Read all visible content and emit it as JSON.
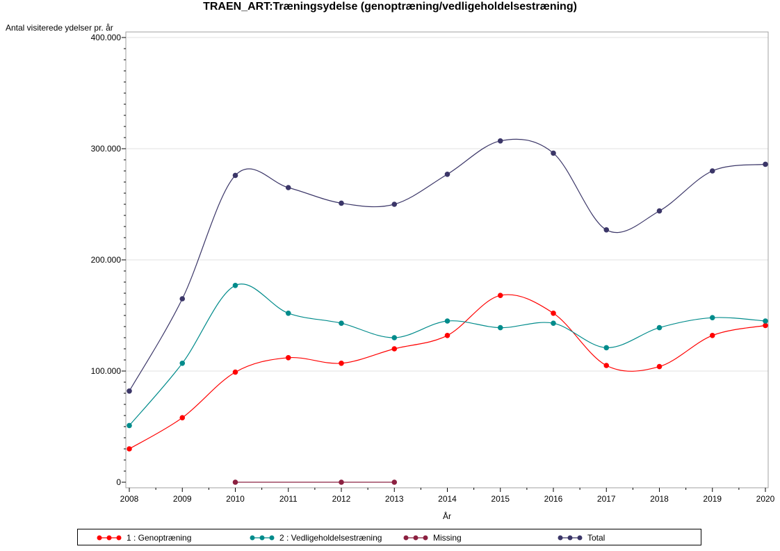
{
  "chart_data": {
    "type": "line",
    "title": "TRAEN_ART:Træningsydelse (genoptræning/vedligeholdelsestræning)",
    "ylabel": "Antal visiterede ydelser pr. år",
    "xlabel": "År",
    "x": [
      2008,
      2009,
      2010,
      2011,
      2012,
      2013,
      2014,
      2015,
      2016,
      2017,
      2018,
      2019,
      2020
    ],
    "ylim": [
      -5000,
      400000
    ],
    "xlim": [
      2008,
      2020
    ],
    "yticks": [
      0,
      100000,
      200000,
      300000,
      400000
    ],
    "ytick_labels": [
      "0",
      "100.000",
      "200.000",
      "300.000",
      "400.000"
    ],
    "xtick_labels": [
      "2008",
      "2009",
      "2010",
      "2011",
      "2012",
      "2013",
      "2014",
      "2015",
      "2016",
      "2017",
      "2018",
      "2019",
      "2020"
    ],
    "grid": true,
    "legend_position": "bottom",
    "series": [
      {
        "name": "1 : Genoptræning",
        "color": "#ff0000",
        "x": [
          2008,
          2009,
          2010,
          2011,
          2012,
          2013,
          2014,
          2015,
          2016,
          2017,
          2018,
          2019,
          2020
        ],
        "values": [
          30000,
          58000,
          99000,
          112000,
          107000,
          120000,
          132000,
          168000,
          152000,
          105000,
          104000,
          132000,
          141000
        ]
      },
      {
        "name": "2 : Vedligeholdelsestræning",
        "color": "#008b8b",
        "x": [
          2008,
          2009,
          2010,
          2011,
          2012,
          2013,
          2014,
          2015,
          2016,
          2017,
          2018,
          2019,
          2020
        ],
        "values": [
          51000,
          107000,
          177000,
          152000,
          143000,
          130000,
          145000,
          139000,
          143000,
          121000,
          139000,
          148000,
          145000
        ]
      },
      {
        "name": "Missing",
        "color": "#8b2040",
        "x": [
          2010,
          2012,
          2013
        ],
        "values": [
          0,
          0,
          0
        ]
      },
      {
        "name": "Total",
        "color": "#3b3668",
        "x": [
          2008,
          2009,
          2010,
          2011,
          2012,
          2013,
          2014,
          2015,
          2016,
          2017,
          2018,
          2019,
          2020
        ],
        "values": [
          82000,
          165000,
          276000,
          265000,
          251000,
          250000,
          277000,
          307000,
          296000,
          227000,
          244000,
          280000,
          286000
        ]
      }
    ]
  }
}
